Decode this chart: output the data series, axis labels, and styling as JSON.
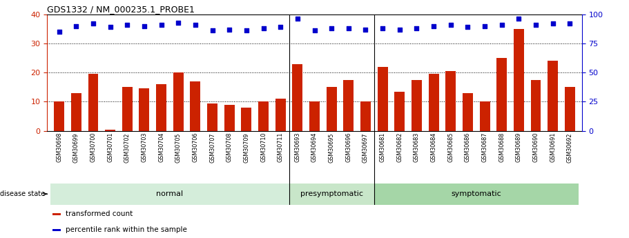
{
  "title": "GDS1332 / NM_000235.1_PROBE1",
  "samples": [
    "GSM30698",
    "GSM30699",
    "GSM30700",
    "GSM30701",
    "GSM30702",
    "GSM30703",
    "GSM30704",
    "GSM30705",
    "GSM30706",
    "GSM30707",
    "GSM30708",
    "GSM30709",
    "GSM30710",
    "GSM30711",
    "GSM30693",
    "GSM30694",
    "GSM30695",
    "GSM30696",
    "GSM30697",
    "GSM30681",
    "GSM30682",
    "GSM30683",
    "GSM30684",
    "GSM30685",
    "GSM30686",
    "GSM30687",
    "GSM30688",
    "GSM30689",
    "GSM30690",
    "GSM30691",
    "GSM30692"
  ],
  "bar_values": [
    10,
    13,
    19.5,
    0.5,
    15,
    14.5,
    16,
    20,
    17,
    9.5,
    9,
    8,
    10,
    11,
    23,
    10,
    15,
    17.5,
    10,
    22,
    13.5,
    17.5,
    19.5,
    20.5,
    13,
    10,
    25,
    35,
    17.5,
    24,
    15
  ],
  "percentile_values": [
    85,
    90,
    92,
    89,
    91,
    90,
    91,
    93,
    91,
    86,
    87,
    86,
    88,
    89,
    96,
    86,
    88,
    88,
    87,
    88,
    87,
    88,
    90,
    91,
    89,
    90,
    91,
    96,
    91,
    92,
    92
  ],
  "bar_color": "#cc2200",
  "dot_color": "#0000cc",
  "ylim_left": [
    0,
    40
  ],
  "ylim_right": [
    0,
    100
  ],
  "yticks_left": [
    0,
    10,
    20,
    30,
    40
  ],
  "yticks_right": [
    0,
    25,
    50,
    75,
    100
  ],
  "grid_values": [
    10,
    20,
    30
  ],
  "group_spans": [
    {
      "name": "normal",
      "start": 0,
      "end": 13,
      "color": "#d4edda"
    },
    {
      "name": "presymptomatic",
      "start": 14,
      "end": 18,
      "color": "#c8e6c9"
    },
    {
      "name": "symptomatic",
      "start": 19,
      "end": 30,
      "color": "#a5d6a7"
    }
  ],
  "legend_items": [
    {
      "label": "transformed count",
      "color": "#cc2200"
    },
    {
      "label": "percentile rank within the sample",
      "color": "#0000cc"
    }
  ],
  "disease_state_label": "disease state",
  "xtick_bg_color": "#bbbbbb",
  "group_boundary_indices": [
    13.5,
    18.5
  ]
}
